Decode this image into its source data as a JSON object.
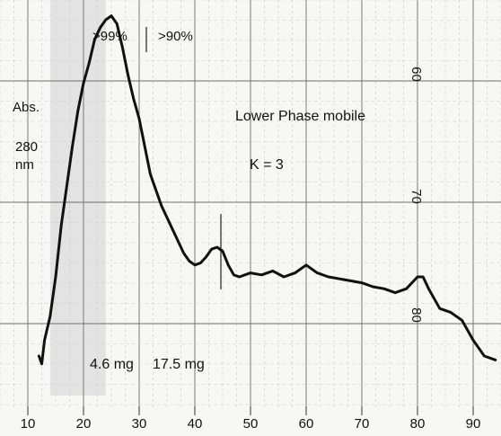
{
  "chart_data": {
    "type": "line",
    "x_ticks": [
      10,
      20,
      30,
      40,
      50,
      60,
      70,
      80,
      90
    ],
    "xlim": [
      5,
      95
    ],
    "ylim": [
      0,
      1
    ],
    "grid": true,
    "ylabel": "Abs.",
    "ylabel_line2": "280",
    "ylabel_line3": "nm",
    "annotations": {
      "phase": "Lower Phase mobile",
      "k_value": "K = 3",
      "purity_left": ">99%",
      "purity_right": ">90%",
      "mass_left": "4.6 mg",
      "mass_right": "17.5 mg"
    },
    "shaded_region": {
      "x_from": 14,
      "x_to": 24
    },
    "secondary_scale": {
      "labels": [
        "60",
        "70",
        "80"
      ],
      "positions_x": [
        74,
        74,
        74
      ],
      "y_values": [
        0.9,
        0.6,
        0.3
      ]
    },
    "trace_x": [
      12,
      12.5,
      13,
      14,
      15,
      16,
      17,
      18,
      19,
      20,
      21,
      22,
      23,
      24,
      25,
      26,
      27,
      28,
      29,
      30,
      31,
      32,
      33,
      34,
      35,
      36,
      37,
      38,
      39,
      40,
      41,
      42,
      43,
      44,
      45,
      46,
      47,
      48,
      50,
      52,
      54,
      56,
      58,
      60,
      62,
      64,
      66,
      68,
      70,
      72,
      74,
      76,
      78,
      79,
      80,
      81,
      82,
      84,
      86,
      88,
      90,
      92,
      94
    ],
    "trace_y": [
      0.1,
      0.08,
      0.14,
      0.2,
      0.3,
      0.43,
      0.53,
      0.63,
      0.72,
      0.79,
      0.84,
      0.9,
      0.93,
      0.95,
      0.96,
      0.94,
      0.88,
      0.81,
      0.75,
      0.7,
      0.63,
      0.56,
      0.52,
      0.48,
      0.45,
      0.42,
      0.39,
      0.36,
      0.34,
      0.33,
      0.335,
      0.35,
      0.37,
      0.375,
      0.365,
      0.33,
      0.305,
      0.3,
      0.31,
      0.305,
      0.315,
      0.3,
      0.31,
      0.33,
      0.31,
      0.3,
      0.295,
      0.29,
      0.285,
      0.275,
      0.27,
      0.26,
      0.27,
      0.285,
      0.3,
      0.3,
      0.27,
      0.22,
      0.21,
      0.19,
      0.14,
      0.1,
      0.09
    ]
  }
}
